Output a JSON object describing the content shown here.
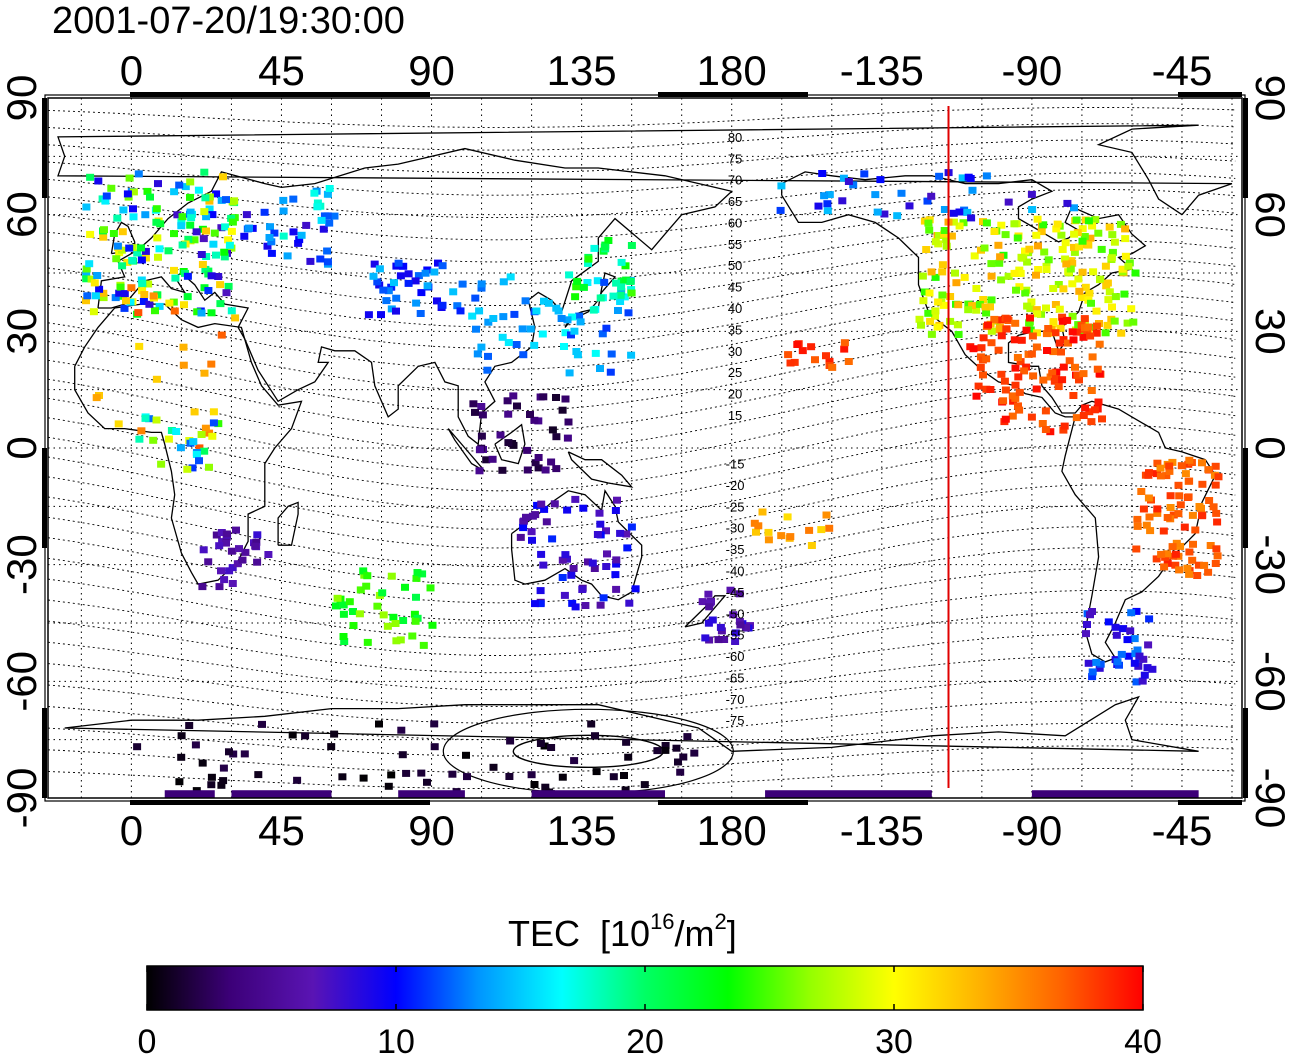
{
  "title": "2001-07-20/19:30:00",
  "map": {
    "top_lon_labels": [
      "0",
      "45",
      "90",
      "135",
      "180",
      "-135",
      "-90",
      "-45"
    ],
    "bottom_lon_labels": [
      "0",
      "45",
      "90",
      "135",
      "180",
      "-135",
      "-90",
      "-45"
    ],
    "left_lat_labels": [
      "90",
      "60",
      "30",
      "0",
      "-30",
      "-60",
      "-90"
    ],
    "right_lat_labels": [
      "90",
      "60",
      "30",
      "0",
      "-30",
      "-60",
      "-90"
    ],
    "north_contour_labels": [
      "80",
      "75",
      "70",
      "65",
      "60",
      "55",
      "50",
      "45",
      "40",
      "35",
      "30",
      "25",
      "20",
      "15"
    ],
    "south_contour_labels": [
      "-15",
      "-20",
      "-25",
      "-30",
      "-35",
      "-40",
      "-45",
      "-50",
      "-55",
      "-60",
      "-65",
      "-70",
      "-75"
    ],
    "terminator_color": "#e00000",
    "terminator_lon": -115
  },
  "colorbar": {
    "label": "TEC",
    "unit_prefix": "[10",
    "unit_exp": "16",
    "unit_mid": "/m",
    "unit_exp2": "2",
    "unit_suffix": "]",
    "ticks": [
      "0",
      "10",
      "20",
      "30",
      "40"
    ],
    "min": 0,
    "max": 40,
    "colors": [
      "#000000",
      "#3c0078",
      "#5a14b4",
      "#0000ff",
      "#0096ff",
      "#00ffff",
      "#00ff64",
      "#00ff00",
      "#96ff00",
      "#ffff00",
      "#ffb400",
      "#ff6400",
      "#ff0000"
    ]
  }
}
